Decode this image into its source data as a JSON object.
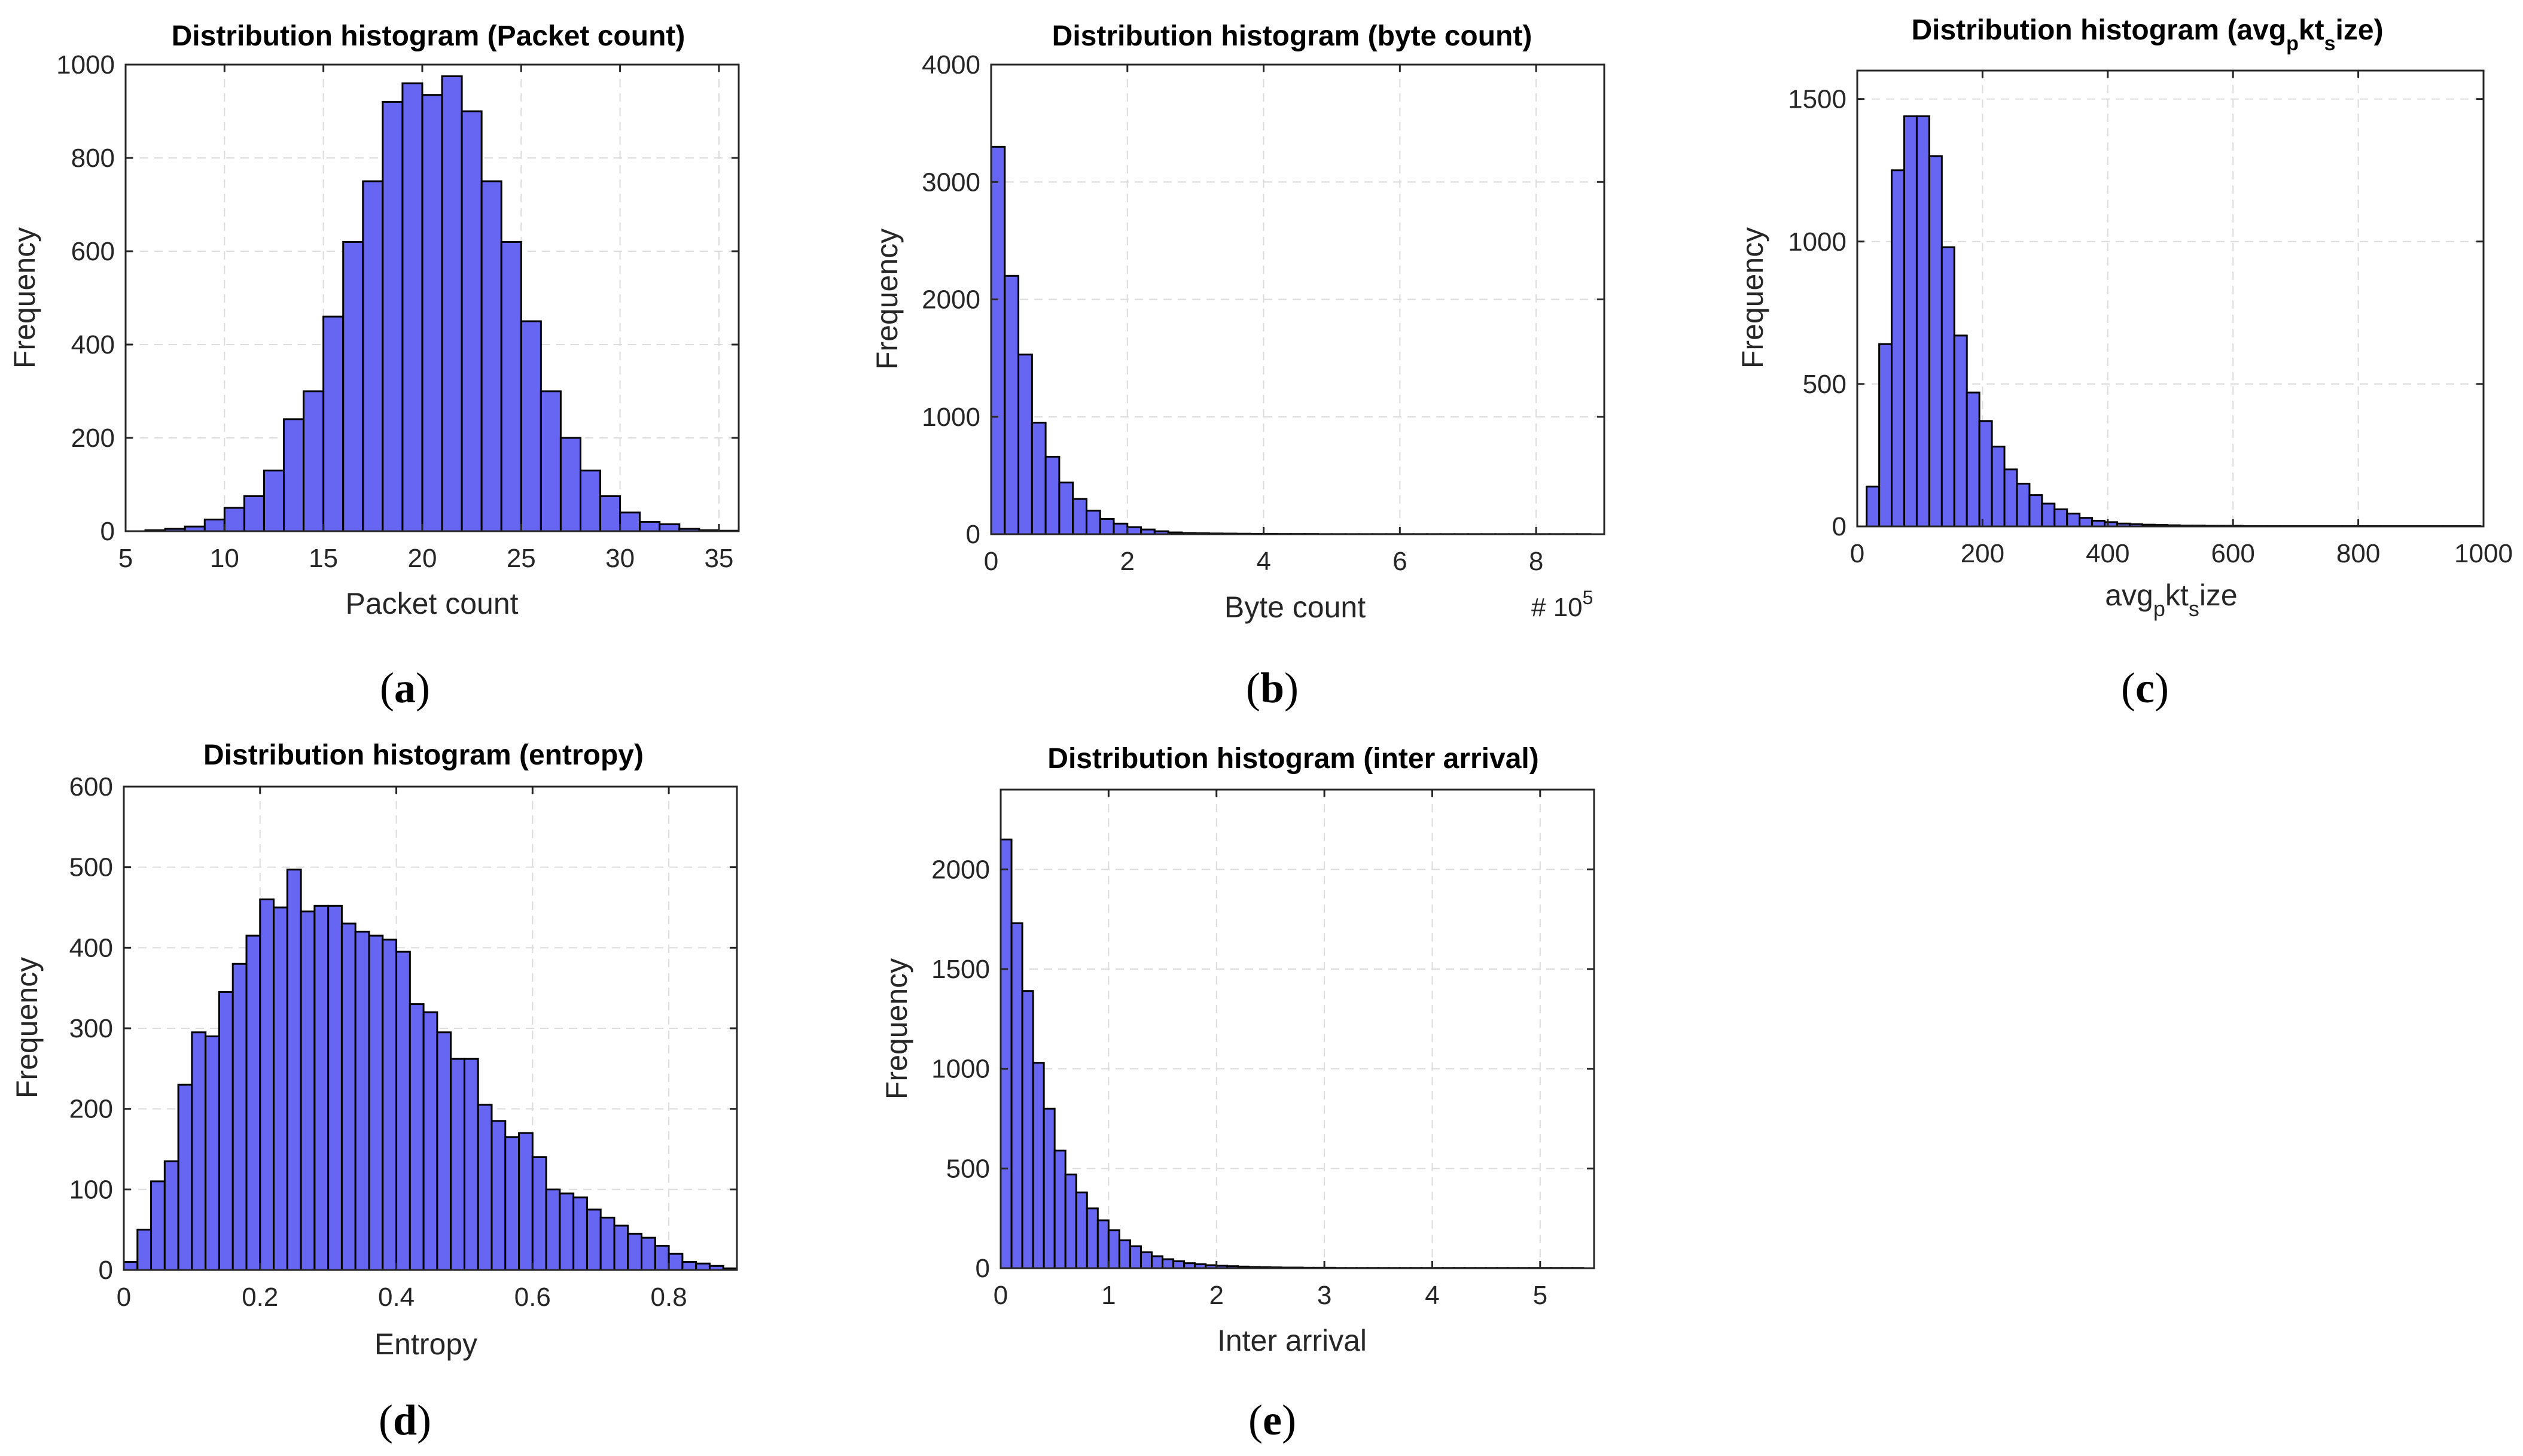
{
  "colors": {
    "bar_fill": "#6666f2",
    "bar_edge": "#000000",
    "axis": "#262626",
    "grid": "#dcdcdc"
  },
  "chart_data": [
    {
      "type": "bar",
      "panel": "a",
      "caption_letter": "a",
      "title": "Distribution histogram (Packet count)",
      "xlabel": "Packet count",
      "ylabel": "Frequency",
      "xlim": [
        5,
        36
      ],
      "ylim": [
        0,
        1000
      ],
      "xticks": [
        5,
        10,
        15,
        20,
        25,
        30,
        35
      ],
      "xticklabels": [
        "5",
        "10",
        "15",
        "20",
        "25",
        "30",
        "35"
      ],
      "yticks": [
        0,
        200,
        400,
        600,
        800,
        1000
      ],
      "yticklabels": [
        "0",
        "200",
        "400",
        "600",
        "800",
        "1000"
      ],
      "bin_start": 6,
      "bin_width": 1,
      "values": [
        2,
        5,
        10,
        25,
        50,
        75,
        130,
        240,
        300,
        460,
        620,
        750,
        920,
        960,
        935,
        975,
        900,
        750,
        620,
        450,
        300,
        200,
        130,
        75,
        40,
        20,
        15,
        5,
        2,
        1
      ]
    },
    {
      "type": "bar",
      "panel": "b",
      "caption_letter": "b",
      "title": "Distribution histogram (byte count)",
      "xlabel": "Byte count",
      "ylabel": "Frequency",
      "x_multiplier": "# 10",
      "x_multiplier_exp": "5",
      "xlim": [
        0,
        9
      ],
      "ylim": [
        0,
        4000
      ],
      "xticks": [
        0,
        2,
        4,
        6,
        8
      ],
      "xticklabels": [
        "0",
        "2",
        "4",
        "6",
        "8"
      ],
      "yticks": [
        0,
        1000,
        2000,
        3000,
        4000
      ],
      "yticklabels": [
        "0",
        "1000",
        "2000",
        "3000",
        "4000"
      ],
      "bin_start": 0,
      "bin_width": 0.2,
      "values": [
        3300,
        2200,
        1530,
        950,
        660,
        440,
        300,
        200,
        130,
        90,
        60,
        40,
        25,
        15,
        10,
        8,
        6,
        5,
        4,
        3,
        3,
        2,
        2,
        2,
        1,
        1,
        1,
        1,
        1,
        1,
        1,
        1,
        1,
        1,
        1,
        1,
        1,
        1,
        1,
        1,
        1,
        1,
        1,
        1
      ]
    },
    {
      "type": "bar",
      "panel": "c",
      "caption_letter": "c",
      "title_prefix": "Distribution histogram (avg",
      "title_sub1": "p",
      "title_mid": "kt",
      "title_sub2": "s",
      "title_suffix": "ize)",
      "xlabel_prefix": "avg",
      "xlabel_sub1": "p",
      "xlabel_mid": "kt",
      "xlabel_sub2": "s",
      "xlabel_suffix": "ize",
      "ylabel": "Frequency",
      "xlim": [
        0,
        1000
      ],
      "ylim": [
        0,
        1600
      ],
      "xticks": [
        0,
        200,
        400,
        600,
        800,
        1000
      ],
      "xticklabels": [
        "0",
        "200",
        "400",
        "600",
        "800",
        "1000"
      ],
      "yticks": [
        0,
        500,
        1000,
        1500
      ],
      "yticklabels": [
        "0",
        "500",
        "1000",
        "1500"
      ],
      "bin_start": 15,
      "bin_width": 20,
      "values": [
        140,
        640,
        1250,
        1440,
        1440,
        1300,
        980,
        670,
        470,
        370,
        280,
        200,
        150,
        110,
        80,
        60,
        45,
        30,
        20,
        15,
        10,
        8,
        6,
        5,
        4,
        3,
        3,
        2,
        2,
        2,
        1,
        1,
        1,
        1,
        1,
        1,
        1,
        1,
        1,
        1,
        1,
        1,
        1,
        1,
        1,
        1,
        1,
        1,
        1
      ]
    },
    {
      "type": "bar",
      "panel": "d",
      "caption_letter": "d",
      "title": "Distribution histogram (entropy)",
      "xlabel": "Entropy",
      "ylabel": "Frequency",
      "xlim": [
        0,
        0.9
      ],
      "ylim": [
        0,
        600
      ],
      "xticks": [
        0,
        0.2,
        0.4,
        0.6,
        0.8
      ],
      "xticklabels": [
        "0",
        "0.2",
        "0.4",
        "0.6",
        "0.8"
      ],
      "yticks": [
        0,
        100,
        200,
        300,
        400,
        500,
        600
      ],
      "yticklabels": [
        "0",
        "100",
        "200",
        "300",
        "400",
        "500",
        "600"
      ],
      "bin_start": 0,
      "bin_width": 0.02,
      "values": [
        10,
        50,
        110,
        135,
        230,
        295,
        290,
        345,
        380,
        415,
        460,
        450,
        497,
        445,
        452,
        452,
        430,
        420,
        415,
        410,
        395,
        330,
        320,
        295,
        262,
        262,
        205,
        185,
        165,
        170,
        140,
        100,
        95,
        90,
        75,
        65,
        55,
        45,
        40,
        30,
        20,
        10,
        8,
        5,
        2
      ]
    },
    {
      "type": "bar",
      "panel": "e",
      "caption_letter": "e",
      "title": "Distribution histogram (inter arrival)",
      "xlabel": "Inter arrival",
      "ylabel": "Frequency",
      "xlim": [
        0,
        5.5
      ],
      "ylim": [
        0,
        2400
      ],
      "xticks": [
        0,
        1,
        2,
        3,
        4,
        5
      ],
      "xticklabels": [
        "0",
        "1",
        "2",
        "3",
        "4",
        "5"
      ],
      "yticks": [
        0,
        500,
        1000,
        1500,
        2000
      ],
      "yticklabels": [
        "0",
        "500",
        "1000",
        "1500",
        "2000"
      ],
      "bin_start": 0,
      "bin_width": 0.1,
      "values": [
        2150,
        1730,
        1390,
        1030,
        800,
        590,
        470,
        380,
        300,
        240,
        190,
        140,
        110,
        80,
        60,
        45,
        35,
        25,
        20,
        15,
        12,
        10,
        8,
        6,
        5,
        4,
        3,
        3,
        2,
        2,
        2,
        1,
        1,
        1,
        1,
        1,
        1,
        1,
        1,
        1,
        1,
        1,
        1,
        1,
        1,
        1,
        1,
        1,
        1,
        1,
        1,
        1,
        1,
        1
      ]
    }
  ]
}
